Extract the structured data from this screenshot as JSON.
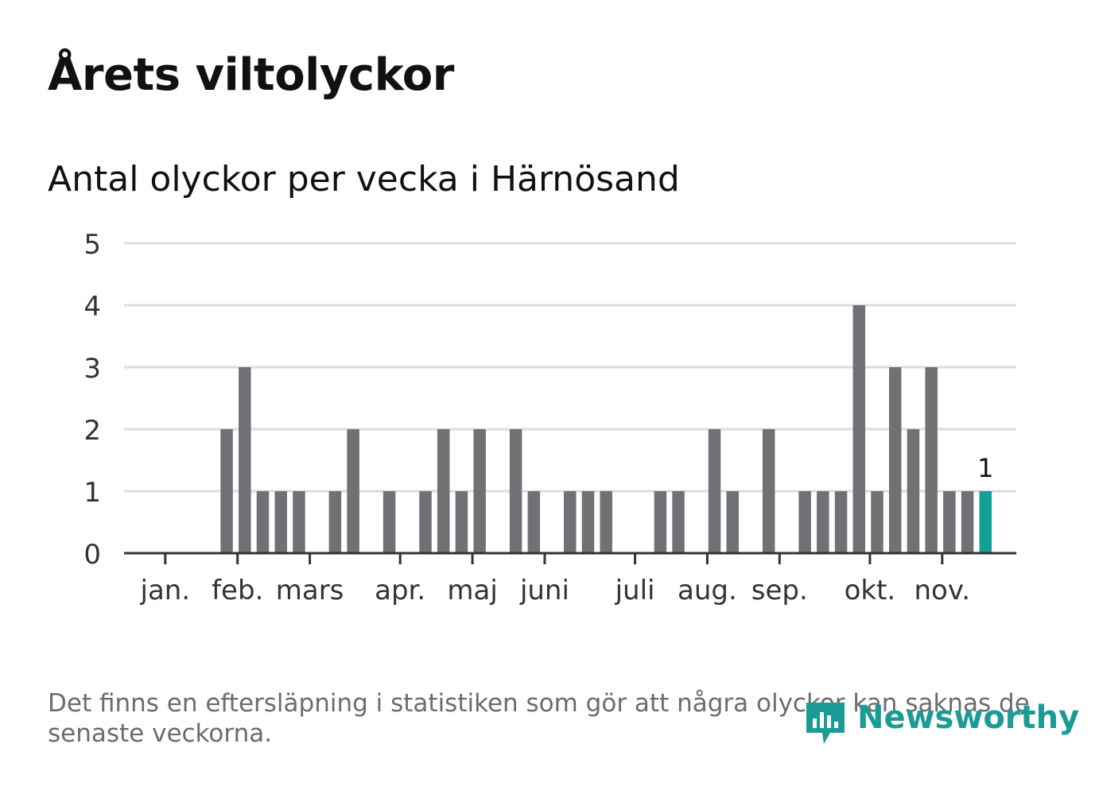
{
  "title": "Årets viltolyckor",
  "subtitle": "Antal olyckor per vecka i Härnösand",
  "footnote": "Det finns en eftersläpning i statistiken som gör att några olyckor kan saknas de senaste veckorna.",
  "brand": {
    "name": "Newsworthy",
    "icon": "newsworthy-logo-icon",
    "color": "#1a9c95"
  },
  "colors": {
    "bar": "#717075",
    "highlight": "#11a196",
    "grid": "#dcdcdc",
    "axis": "#333333"
  },
  "chart_data": {
    "type": "bar",
    "title": "Antal olyckor per vecka i Härnösand",
    "xlabel": "",
    "ylabel": "",
    "ylim": [
      0,
      5
    ],
    "yticks": [
      0,
      1,
      2,
      3,
      4,
      5
    ],
    "grid": true,
    "weeks": [
      1,
      2,
      3,
      4,
      5,
      6,
      7,
      8,
      9,
      10,
      11,
      12,
      13,
      14,
      15,
      16,
      17,
      18,
      19,
      20,
      21,
      22,
      23,
      24,
      25,
      26,
      27,
      28,
      29,
      30,
      31,
      32,
      33,
      34,
      35,
      36,
      37,
      38,
      39,
      40,
      41,
      42,
      43,
      44,
      45,
      46,
      47
    ],
    "values": [
      0,
      0,
      0,
      0,
      2,
      3,
      1,
      1,
      1,
      0,
      1,
      2,
      0,
      1,
      0,
      1,
      2,
      1,
      2,
      0,
      2,
      1,
      0,
      1,
      1,
      1,
      0,
      0,
      1,
      1,
      0,
      2,
      1,
      0,
      2,
      0,
      1,
      1,
      1,
      4,
      1,
      3,
      2,
      3,
      1,
      1,
      1
    ],
    "highlight_week": 47,
    "highlight_label": "1",
    "month_ticks": [
      {
        "label": "jan.",
        "week": 1.6
      },
      {
        "label": "feb.",
        "week": 5.6
      },
      {
        "label": "mars",
        "week": 9.6
      },
      {
        "label": "apr.",
        "week": 14.6
      },
      {
        "label": "maj",
        "week": 18.6
      },
      {
        "label": "juni",
        "week": 22.6
      },
      {
        "label": "juli",
        "week": 27.6
      },
      {
        "label": "aug.",
        "week": 31.6
      },
      {
        "label": "sep.",
        "week": 35.6
      },
      {
        "label": "okt.",
        "week": 40.6
      },
      {
        "label": "nov.",
        "week": 44.6
      }
    ]
  }
}
